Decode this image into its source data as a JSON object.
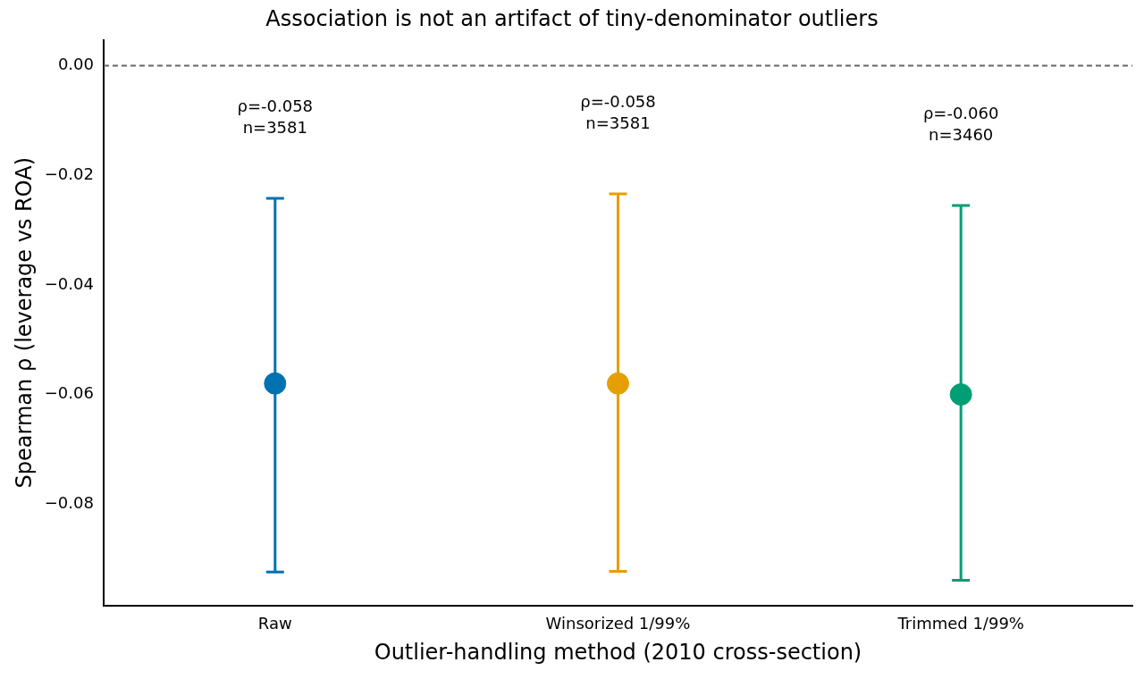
{
  "chart_data": {
    "type": "scatter",
    "title": "Association is not an artifact of tiny-denominator outliers",
    "xlabel": "Outlier-handling method (2010 cross-section)",
    "ylabel": "Spearman ρ (leverage vs ROA)",
    "categories": [
      "Raw",
      "Winsorized 1/99%",
      "Trimmed 1/99%"
    ],
    "values": [
      -0.058,
      -0.058,
      -0.06
    ],
    "colors": [
      "#0072b2",
      "#e69f00",
      "#009e73"
    ],
    "errors": [
      [
        -0.0924,
        -0.0242
      ],
      [
        -0.0923,
        -0.0234
      ],
      [
        -0.0939,
        -0.0255
      ]
    ],
    "marker": "circle",
    "ylim": [
      -0.0985,
      0.0047
    ],
    "yticks": [
      {
        "value": 0,
        "label": "0.00"
      },
      {
        "value": -0.02,
        "label": "−0.02"
      },
      {
        "value": -0.04,
        "label": "−0.04"
      },
      {
        "value": -0.06,
        "label": "−0.06"
      },
      {
        "value": -0.08,
        "label": "−0.08"
      }
    ],
    "ref_lines": [
      {
        "axis": "y",
        "value": 0,
        "color": "#666666",
        "line_style": "dashed"
      }
    ],
    "annotations": [
      "ρ=-0.058\nn=3581",
      "ρ=-0.058\nn=3581",
      "ρ=-0.060\nn=3460"
    ],
    "grid": false,
    "legend": false
  }
}
